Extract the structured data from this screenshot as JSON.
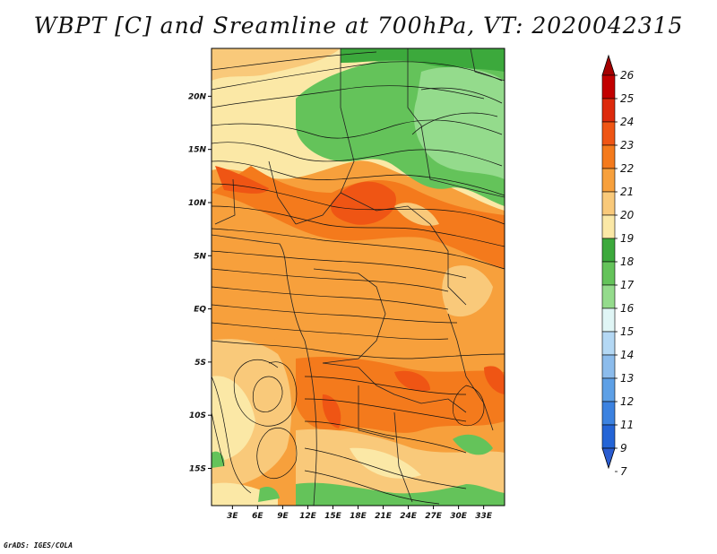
{
  "title": "WBPT [C] and Sreamline at 700hPa, VT: 2020042315",
  "credit": "GrADS: IGES/COLA",
  "map": {
    "lat_labels": [
      "20N",
      "15N",
      "10N",
      "5N",
      "EQ",
      "5S",
      "10S",
      "15S"
    ],
    "lon_labels": [
      "3E",
      "6E",
      "9E",
      "12E",
      "15E",
      "18E",
      "21E",
      "24E",
      "27E",
      "30E",
      "33E"
    ],
    "lat_values": [
      20,
      15,
      10,
      5,
      0,
      -5,
      -10,
      -15
    ],
    "lon_values": [
      3,
      6,
      9,
      12,
      15,
      18,
      21,
      24,
      27,
      30,
      33
    ],
    "lat_range": [
      -18.5,
      24.5
    ],
    "lon_range": [
      0.5,
      35.5
    ]
  },
  "colorbar": {
    "levels": [
      "26",
      "25",
      "24",
      "23",
      "22",
      "21",
      "20",
      "19",
      "18",
      "17",
      "16",
      "15",
      "14",
      "13",
      "12",
      "11",
      "9",
      "7"
    ],
    "colors": [
      "#a50000",
      "#c20000",
      "#dd2a0c",
      "#ef5514",
      "#f47a1c",
      "#f7a03c",
      "#f9c97a",
      "#fbe8a6",
      "#3ca93c",
      "#64c35a",
      "#94db8c",
      "#e0f6f6",
      "#b4d8f4",
      "#8cbcec",
      "#5ea0e6",
      "#3c82e0",
      "#2464d6",
      "#2a5cd0"
    ]
  }
}
